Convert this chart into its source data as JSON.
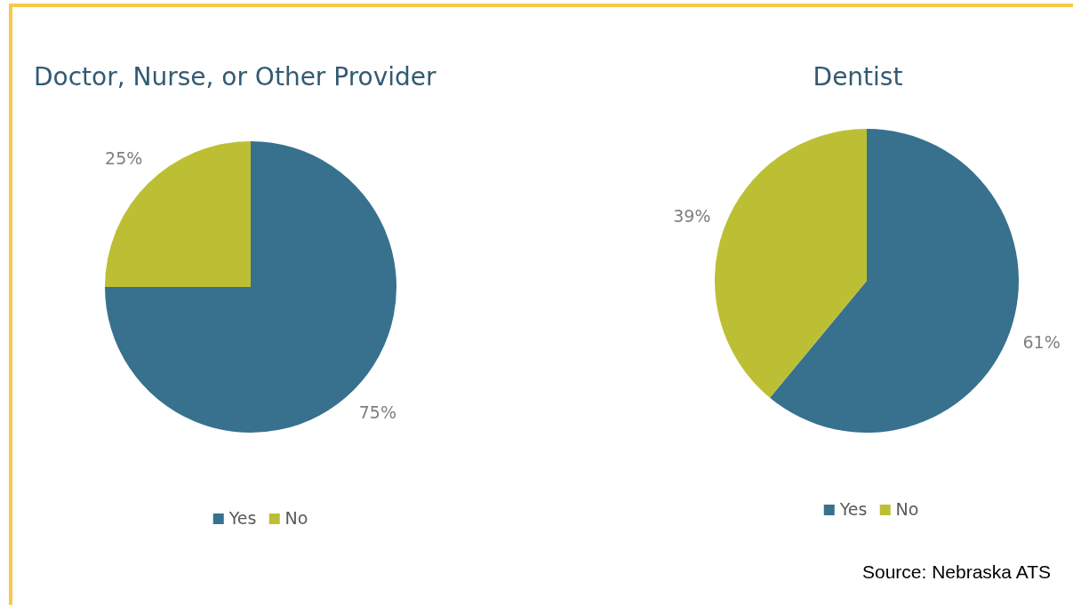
{
  "chart_data": [
    {
      "type": "pie",
      "title": "Doctor, Nurse, or Other Provider",
      "categories": [
        "Yes",
        "No"
      ],
      "values": [
        75,
        25
      ],
      "colors": [
        "#37718e",
        "#bcbf34"
      ],
      "value_labels": [
        "75%",
        "25%"
      ],
      "legend": "bottom"
    },
    {
      "type": "pie",
      "title": "Dentist",
      "categories": [
        "Yes",
        "No"
      ],
      "values": [
        61,
        39
      ],
      "colors": [
        "#37718e",
        "#bcbf34"
      ],
      "value_labels": [
        "61%",
        "39%"
      ],
      "legend": "bottom",
      "annotations": [
        "Source: Nebraska ATS"
      ]
    }
  ]
}
